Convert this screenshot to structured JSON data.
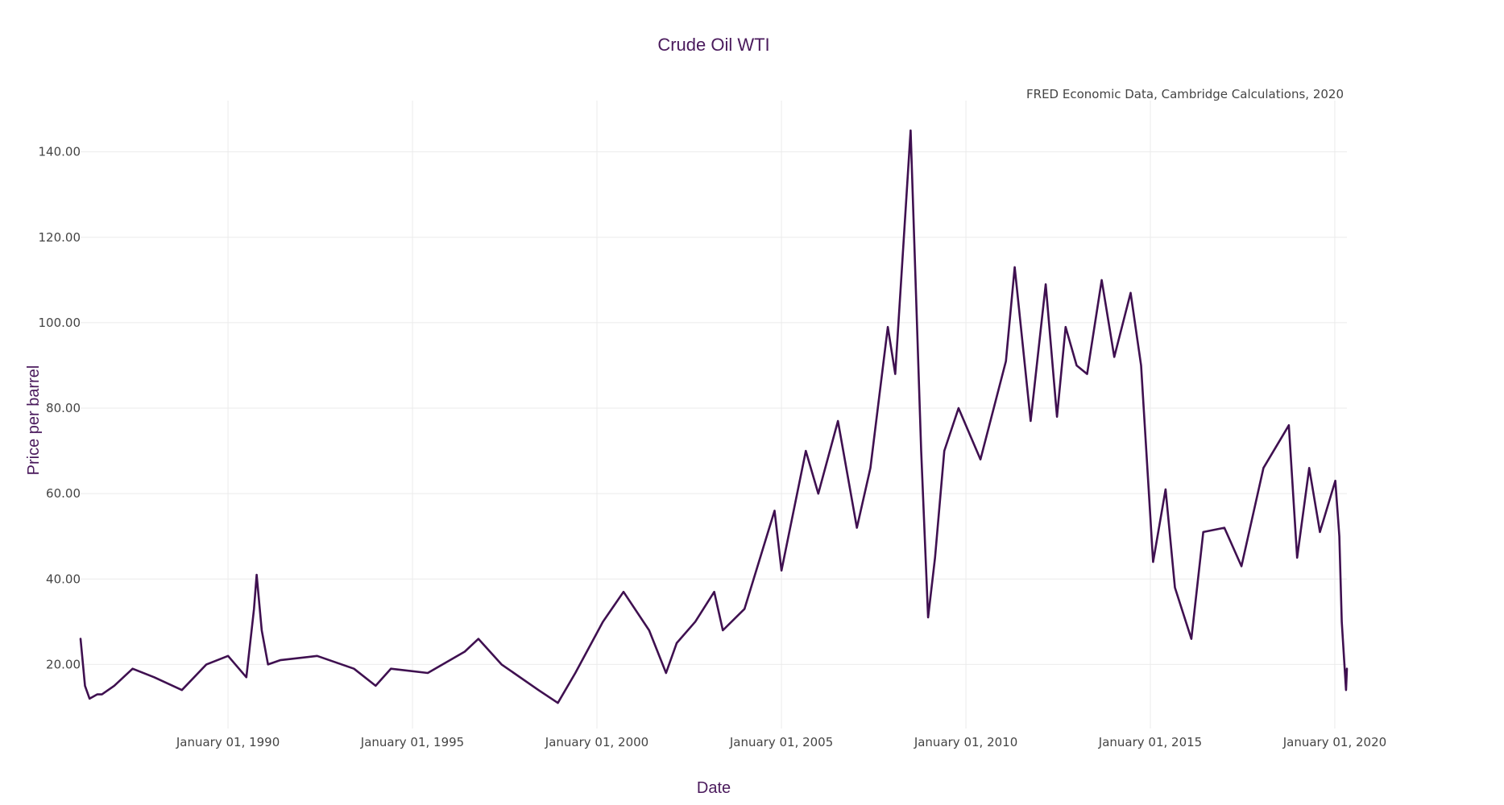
{
  "chart_data": {
    "type": "line",
    "title": "Crude Oil WTI",
    "annotation": "FRED Economic Data, Cambridge Calculations, 2020",
    "xlabel": "Date",
    "ylabel": "Price per barrel",
    "xlim": [
      "1986-01-02",
      "2020-04-30"
    ],
    "ylim": [
      5,
      152
    ],
    "yticks": [
      20,
      40,
      60,
      80,
      100,
      120,
      140
    ],
    "ytick_labels": [
      "20.00",
      "40.00",
      "60.00",
      "80.00",
      "100.00",
      "120.00",
      "140.00"
    ],
    "xticks": [
      "1990-01-01",
      "1995-01-01",
      "2000-01-01",
      "2005-01-01",
      "2010-01-01",
      "2015-01-01",
      "2020-01-01"
    ],
    "xtick_labels": [
      "January 01, 1990",
      "January 01, 1995",
      "January 01, 2000",
      "January 01, 2005",
      "January 01, 2010",
      "January 01, 2015",
      "January 01, 2020"
    ],
    "grid": true,
    "colors": {
      "line": "#3f1050",
      "title": "#4a1a5c",
      "tick": "#444444",
      "grid": "#ebebeb"
    },
    "series": [
      {
        "x": [
          "1986-01-02",
          "1986-02-15",
          "1986-04-01",
          "1986-06-15",
          "1986-08-01",
          "1986-12-01",
          "1987-06-01",
          "1988-01-01",
          "1988-10-01",
          "1989-06-01",
          "1990-01-01",
          "1990-07-01",
          "1990-09-15",
          "1990-10-11",
          "1990-12-01",
          "1991-02-01",
          "1991-06-01",
          "1992-06-01",
          "1993-06-01",
          "1994-01-01",
          "1994-06-01",
          "1995-06-01",
          "1996-06-01",
          "1996-10-15",
          "1997-06-01",
          "1998-06-01",
          "1998-12-10",
          "1999-06-01",
          "2000-03-01",
          "2000-09-20",
          "2001-06-01",
          "2001-11-15",
          "2002-03-01",
          "2002-09-01",
          "2003-03-07",
          "2003-06-01",
          "2004-01-01",
          "2004-10-25",
          "2005-01-01",
          "2005-08-30",
          "2006-01-01",
          "2006-07-14",
          "2007-01-18",
          "2007-06-01",
          "2007-11-20",
          "2008-02-01",
          "2008-07-03",
          "2008-10-15",
          "2008-12-23",
          "2009-03-01",
          "2009-06-01",
          "2009-10-20",
          "2010-05-25",
          "2011-02-01",
          "2011-04-29",
          "2011-10-04",
          "2012-03-01",
          "2012-06-21",
          "2012-09-14",
          "2013-01-01",
          "2013-04-15",
          "2013-09-06",
          "2014-01-09",
          "2014-06-20",
          "2014-10-01",
          "2015-01-28",
          "2015-06-01",
          "2015-09-01",
          "2016-02-11",
          "2016-06-08",
          "2017-01-03",
          "2017-06-21",
          "2018-01-25",
          "2018-10-03",
          "2018-12-24",
          "2019-04-23",
          "2019-08-07",
          "2020-01-06",
          "2020-02-15",
          "2020-03-10",
          "2020-04-21",
          "2020-04-30"
        ],
        "values": [
          26,
          15,
          12,
          13,
          13,
          15,
          19,
          17,
          14,
          20,
          22,
          17,
          33,
          41,
          28,
          20,
          21,
          22,
          19,
          15,
          19,
          18,
          23,
          26,
          20,
          14,
          11,
          18,
          30,
          37,
          28,
          18,
          25,
          30,
          37,
          28,
          33,
          56,
          42,
          70,
          60,
          77,
          52,
          66,
          99,
          88,
          145,
          70,
          31,
          45,
          70,
          80,
          68,
          91,
          113,
          77,
          109,
          78,
          99,
          90,
          88,
          110,
          92,
          107,
          90,
          44,
          61,
          38,
          26,
          51,
          52,
          43,
          66,
          76,
          45,
          66,
          51,
          63,
          50,
          30,
          14,
          19
        ]
      }
    ]
  }
}
